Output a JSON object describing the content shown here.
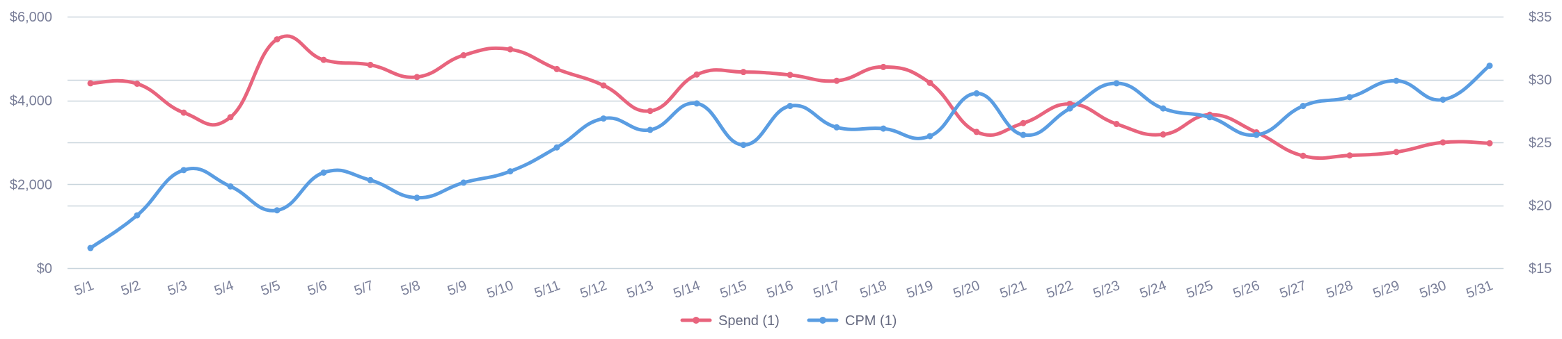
{
  "chart_data": {
    "type": "line",
    "title": "",
    "xlabel": "",
    "ylabel": "",
    "categories": [
      "5/1",
      "5/2",
      "5/3",
      "5/4",
      "5/5",
      "5/6",
      "5/7",
      "5/8",
      "5/9",
      "5/10",
      "5/11",
      "5/12",
      "5/13",
      "5/14",
      "5/15",
      "5/16",
      "5/17",
      "5/18",
      "5/19",
      "5/20",
      "5/21",
      "5/22",
      "5/23",
      "5/24",
      "5/25",
      "5/26",
      "5/27",
      "5/28",
      "5/29",
      "5/30",
      "5/31"
    ],
    "left_axis": {
      "ticks": [
        "$0",
        "$2,000",
        "$4,000",
        "$6,000"
      ],
      "ylim": [
        0,
        6000
      ]
    },
    "right_axis": {
      "ticks": [
        "$15",
        "$20",
        "$25",
        "$30",
        "$35"
      ],
      "ylim": [
        15,
        35
      ]
    },
    "series": [
      {
        "name": "Spend (1)",
        "axis": "left",
        "color": "#e8647d",
        "values": [
          4410,
          4400,
          3710,
          3600,
          5460,
          4970,
          4850,
          4560,
          5080,
          5220,
          4750,
          4360,
          3750,
          4620,
          4680,
          4610,
          4470,
          4800,
          4420,
          3250,
          3460,
          3920,
          3440,
          3190,
          3660,
          3240,
          2680,
          2690,
          2770,
          3000,
          2980
        ]
      },
      {
        "name": "CPM (1)",
        "axis": "right",
        "color": "#5a9de2",
        "values": [
          16.6,
          19.2,
          22.8,
          21.5,
          19.6,
          22.6,
          22.0,
          20.6,
          21.8,
          22.7,
          24.6,
          26.9,
          26.0,
          28.1,
          24.8,
          27.9,
          26.2,
          26.1,
          25.5,
          28.9,
          25.6,
          27.7,
          29.7,
          27.7,
          27.0,
          25.6,
          27.9,
          28.6,
          29.9,
          28.4,
          31.1
        ]
      }
    ],
    "grid": true,
    "legend_position": "bottom-center"
  }
}
